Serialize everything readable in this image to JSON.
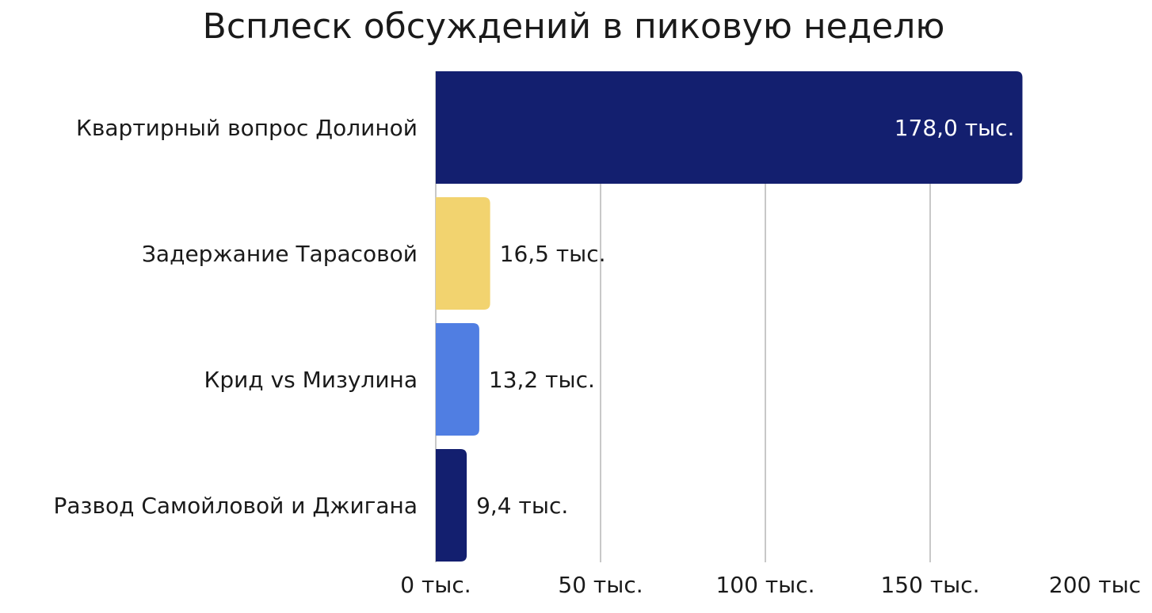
{
  "chart_data": {
    "type": "bar",
    "orientation": "horizontal",
    "title": "Всплеск обсуждений в пиковую неделю",
    "xlabel": "",
    "ylabel": "",
    "xlim": [
      0,
      200000
    ],
    "grid": true,
    "legend": "none",
    "categories": [
      "Квартирный вопрос Долиной",
      "Задержание Тарасовой",
      "Крид vs Мизулина",
      "Развод Самойловой и Джигана"
    ],
    "values": [
      178000,
      16500,
      13200,
      9400
    ],
    "value_labels": [
      "178,0 тыс.",
      "16,5 тыс.",
      "13,2 тыс.",
      "9,4 тыс."
    ],
    "bar_colors": [
      "#131f6f",
      "#f2d36f",
      "#507ee2",
      "#131f6f"
    ],
    "ticks": [
      {
        "value": 0,
        "label": "0 тыс."
      },
      {
        "value": 50000,
        "label": "50 тыс."
      },
      {
        "value": 100000,
        "label": "100 тыс."
      },
      {
        "value": 150000,
        "label": "150 тыс."
      },
      {
        "value": 200000,
        "label": "200 тыс"
      }
    ]
  }
}
